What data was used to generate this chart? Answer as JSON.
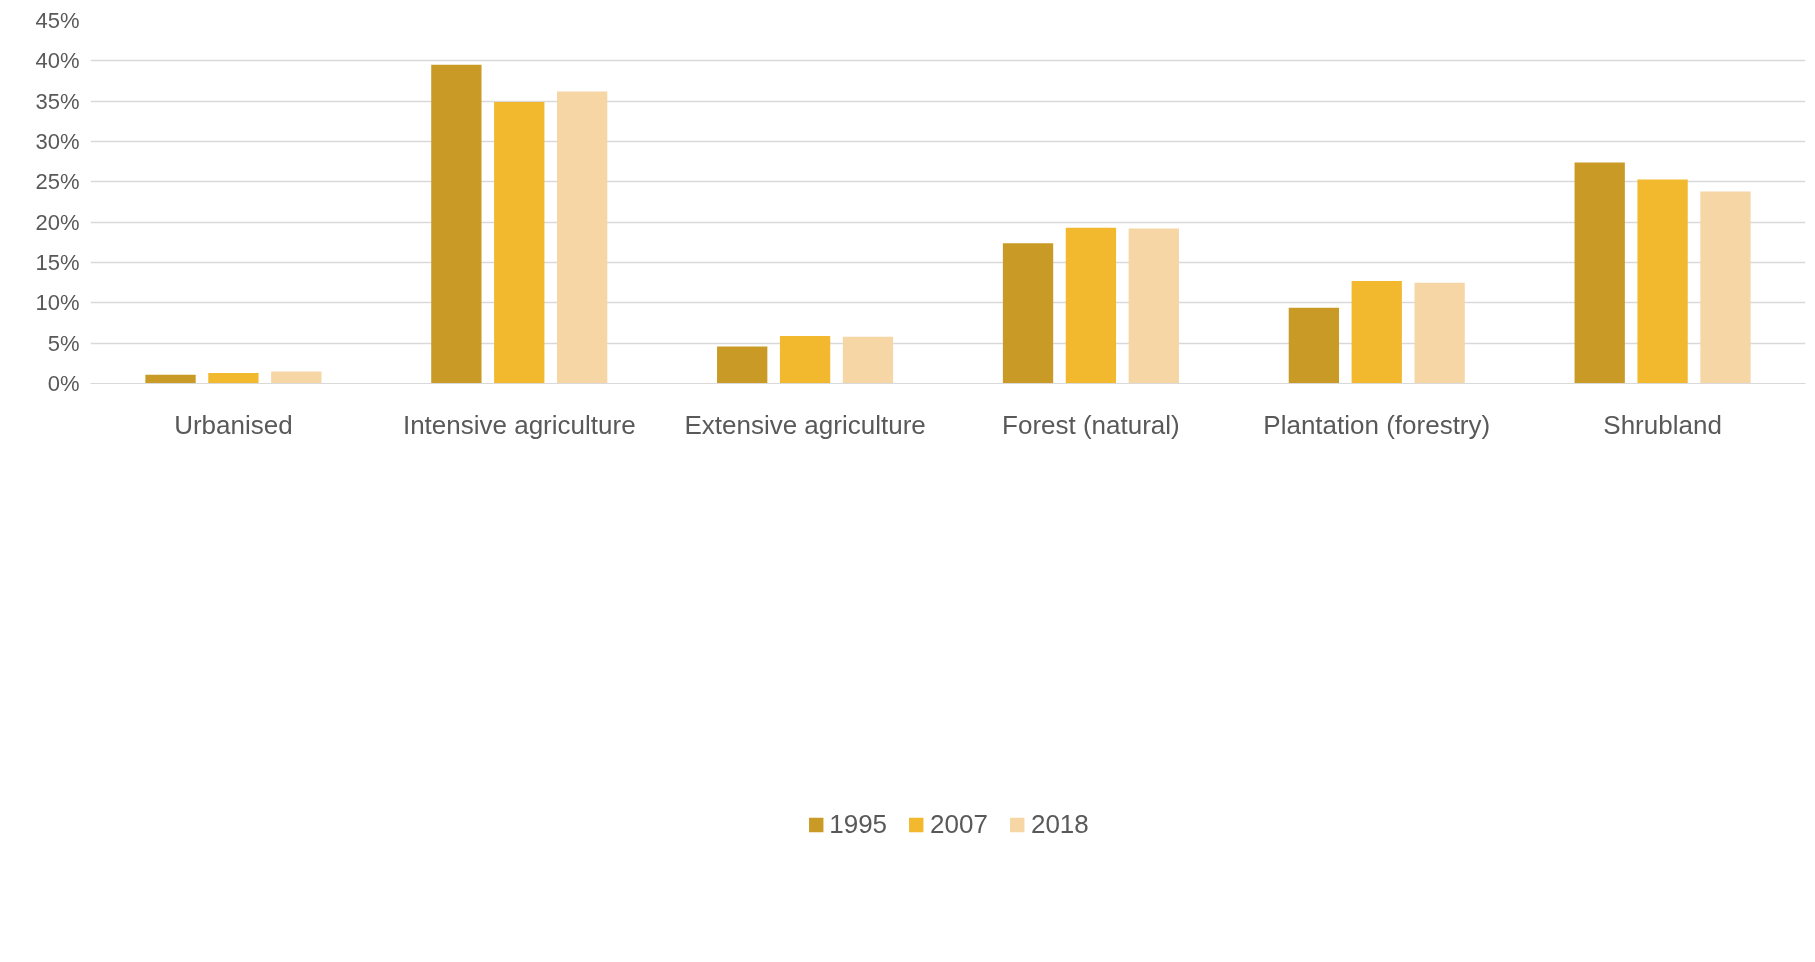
{
  "chart_data": {
    "type": "bar",
    "categories": [
      "Urbanised",
      "Intensive agriculture",
      "Extensive agriculture",
      "Forest (natural)",
      "Plantation (forestry)",
      "Shrubland"
    ],
    "series": [
      {
        "name": "1995",
        "color": "#c99a26",
        "values": [
          1.1,
          39.5,
          4.6,
          17.4,
          9.4,
          27.4
        ]
      },
      {
        "name": "2007",
        "color": "#f2b92f",
        "values": [
          1.3,
          34.9,
          5.9,
          19.3,
          12.7,
          25.3
        ]
      },
      {
        "name": "2018",
        "color": "#f6d6a4",
        "values": [
          1.5,
          36.2,
          5.8,
          19.2,
          12.5,
          23.8
        ]
      }
    ],
    "ylim": [
      0,
      45
    ],
    "yticks": [
      {
        "value": 0,
        "label": "0%"
      },
      {
        "value": 5,
        "label": "5%"
      },
      {
        "value": 10,
        "label": "10%"
      },
      {
        "value": 15,
        "label": "15%"
      },
      {
        "value": 20,
        "label": "20%"
      },
      {
        "value": 25,
        "label": "25%"
      },
      {
        "value": 30,
        "label": "30%"
      },
      {
        "value": 35,
        "label": "35%"
      },
      {
        "value": 40,
        "label": "40%"
      },
      {
        "value": 45,
        "label": "45%"
      }
    ],
    "grid": "y",
    "legend": "bottom"
  }
}
